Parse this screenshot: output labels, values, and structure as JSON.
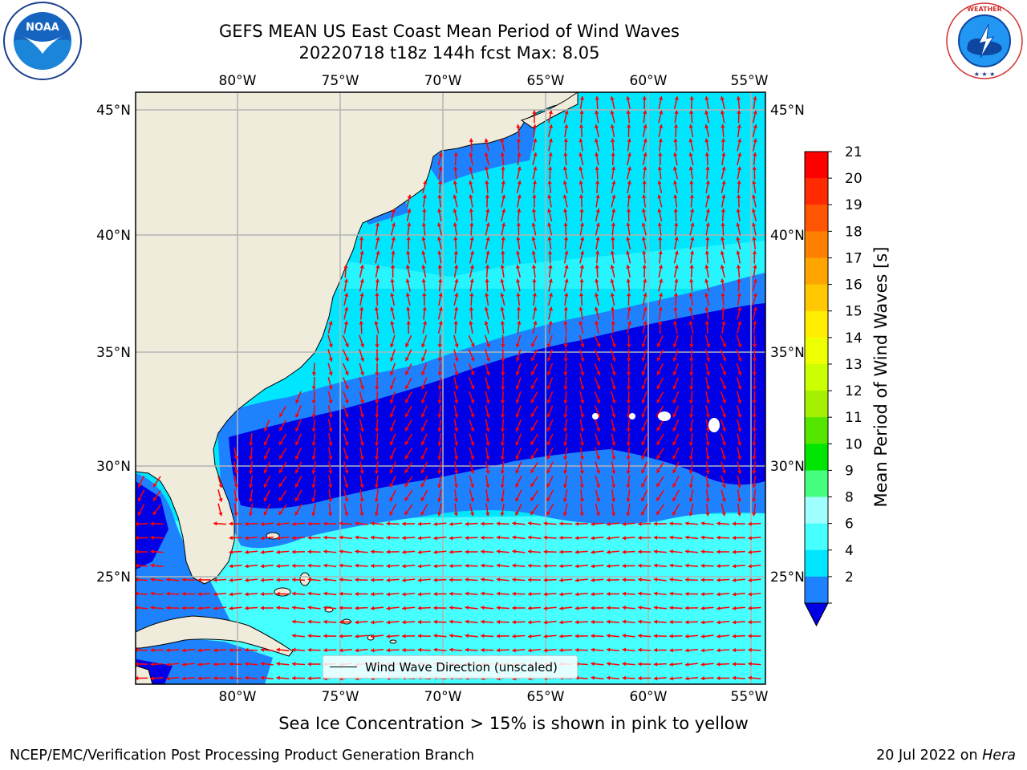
{
  "header": {
    "title_line1": "GEFS MEAN US East Coast Mean Period of Wind Waves",
    "title_line2": "20220718 t18z 144h fcst   Max: 8.05"
  },
  "logos": {
    "left": "NOAA",
    "left_ring_text": "NATIONAL OCEANIC AND ATMOSPHERIC ADMINISTRATION · U.S. DEPARTMENT OF COMMERCE",
    "right_ring_text": "NATIONAL WEATHER SERVICE"
  },
  "map": {
    "lon_labels": [
      "80°W",
      "75°W",
      "70°W",
      "65°W",
      "60°W",
      "55°W"
    ],
    "lat_labels": [
      "45°N",
      "40°N",
      "35°N",
      "30°N",
      "25°N"
    ],
    "legend_label": "Wind Wave Direction (unscaled)",
    "colors": {
      "land": "#efecdc",
      "ocean_deep": "#0000e6",
      "band_2_4": "#1e82ff",
      "band_4_6": "#00e6ff",
      "band_6_8": "#46ffff",
      "arrow": "#ff0000",
      "grid": "#b4b4b4"
    }
  },
  "colorbar": {
    "label": "Mean Period of Wind Waves [s]",
    "ticks": [
      "21",
      "20",
      "19",
      "18",
      "17",
      "16",
      "15",
      "14",
      "13",
      "12",
      "11",
      "10",
      "9",
      "8",
      "6",
      "4",
      "2"
    ],
    "colors": [
      "#ff0000",
      "#ff2a00",
      "#ff5500",
      "#ff7f00",
      "#ffa500",
      "#ffc800",
      "#ffee00",
      "#eeff00",
      "#ccff00",
      "#a4f000",
      "#55e600",
      "#00e600",
      "#46ff7f",
      "#9fffff",
      "#46ffff",
      "#00e6ff",
      "#1e82ff"
    ],
    "extend_low_color": "#0000e6"
  },
  "footer": {
    "subtitle": "Sea Ice Concentration > 15% is shown in pink to yellow",
    "left": "NCEP/EMC/Verification Post Processing Product Generation Branch",
    "right_date": "20 Jul 2022 on ",
    "right_host": "Hera"
  }
}
